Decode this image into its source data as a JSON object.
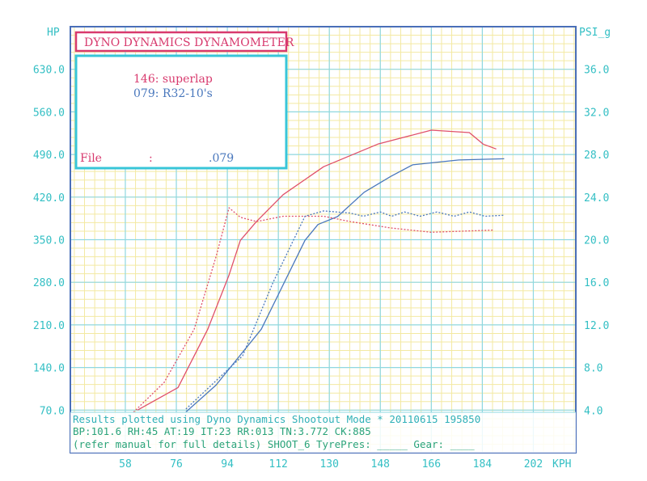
{
  "chart_data": {
    "type": "line",
    "title": "DYNO DYNAMICS DYNAMOMETER",
    "xlabel": "KPH",
    "ylabel_left": "HP",
    "ylabel_right": "PSI_g",
    "xlim": [
      38.6,
      217
    ],
    "ylim_left": [
      0,
      700
    ],
    "ylim_right": [
      0,
      40
    ],
    "x_ticks": [
      "58",
      "76",
      "94",
      "112",
      "130",
      "148",
      "166",
      "184",
      "202"
    ],
    "x_tick_values": [
      58,
      76,
      94,
      112,
      130,
      148,
      166,
      184,
      202
    ],
    "y_left_ticks": [
      "630.0",
      "560.0",
      "490.0",
      "420.0",
      "350.0",
      "280.0",
      "210.0",
      "140.0",
      "70.0"
    ],
    "y_left_tick_values": [
      630,
      560,
      490,
      420,
      350,
      280,
      210,
      140,
      70
    ],
    "y_right_ticks": [
      "36.0",
      "32.0",
      "28.0",
      "24.0",
      "20.0",
      "16.0",
      "12.0",
      "8.0",
      "4.0"
    ],
    "y_right_tick_values": [
      36,
      32,
      28,
      24,
      20,
      16,
      12,
      8,
      4
    ],
    "grid": true,
    "legend": {
      "placement": "top-left",
      "entries": [
        {
          "id": "146",
          "label": "superlap",
          "color": "#e0506a"
        },
        {
          "id": "079",
          "label": "R32-10's",
          "color": "#4a78bd"
        }
      ],
      "file_label": "File",
      "file_sep": ":",
      "file_value": ".079"
    },
    "series": [
      {
        "name": "146: superlap power",
        "axis": "left",
        "style": "solid",
        "color": "#e0506a",
        "x": [
          62.3,
          76.6,
          87.1,
          94.6,
          98.6,
          104.3,
          113.7,
          128,
          147.1,
          166,
          179.4,
          184.3,
          188.9
        ],
        "y": [
          70,
          107,
          203,
          292,
          349,
          380,
          424,
          470,
          507,
          530,
          526,
          507,
          499
        ]
      },
      {
        "name": "079: R32-10's power",
        "axis": "left",
        "style": "solid",
        "color": "#4a78bd",
        "x": [
          79.4,
          90,
          106,
          121.4,
          126,
          132.9,
          142.3,
          151.7,
          159.4,
          175.7,
          191.7
        ],
        "y": [
          67,
          111,
          203,
          349,
          375,
          388,
          428,
          454,
          473,
          481,
          483
        ]
      },
      {
        "name": "146: superlap boost",
        "axis": "right",
        "style": "dotted",
        "color": "#e0506a",
        "x": [
          60.9,
          71.7,
          82.3,
          90,
          94.6,
          98.6,
          104.3,
          113.7,
          128,
          137.4,
          151.7,
          166,
          188
        ],
        "y": [
          3.8,
          6.6,
          11.6,
          18.4,
          23.0,
          22.1,
          21.7,
          22.2,
          22.2,
          21.7,
          21.1,
          20.7,
          20.9
        ]
      },
      {
        "name": "079: R32-10's boost",
        "axis": "right",
        "style": "dotted",
        "color": "#4a78bd",
        "x": [
          79.4,
          99.4,
          110,
          121.4,
          128,
          137.4,
          142,
          148,
          152,
          156.6,
          162,
          168,
          174,
          179.4,
          185,
          191.7
        ],
        "y": [
          4.1,
          9.1,
          15.9,
          22.2,
          22.7,
          22.5,
          22.2,
          22.6,
          22.2,
          22.6,
          22.2,
          22.6,
          22.2,
          22.6,
          22.2,
          22.3
        ]
      }
    ]
  },
  "footer": {
    "line1": "Results plotted using Dyno Dynamics Shootout Mode * 20110615 195850",
    "line2": "BP:101.6 RH:45 AT:19 IT:23  RR:013 TN:3.772 CK:885",
    "line3": "(refer manual for full details) SHOOT_6  TyrePres: _____ Gear: ____"
  },
  "colors": {
    "grid_major": "#8fd8e2",
    "grid_minor": "#f3e9a2",
    "frame": "#4a6fb8",
    "tick": "#33bfc4",
    "title": "#d83a6e",
    "footer": "#2aa37a"
  }
}
